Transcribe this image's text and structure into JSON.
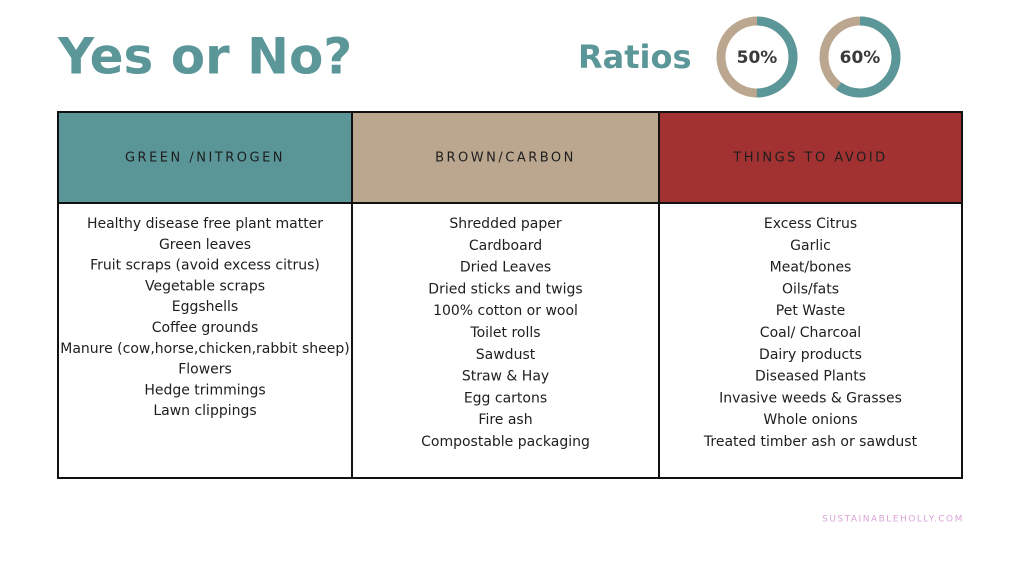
{
  "title": "Yes or No?",
  "ratios": {
    "label": "Ratios",
    "items": [
      {
        "value": 50,
        "label": "50%"
      },
      {
        "value": 60,
        "label": "60%"
      }
    ]
  },
  "table": {
    "columns": [
      {
        "header": "GREEN /NITROGEN",
        "color": "#5a9597",
        "items": [
          "Healthy disease free plant matter",
          "Green leaves",
          "Fruit scraps (avoid excess citrus)",
          "Vegetable scraps",
          "Eggshells",
          "Coffee grounds",
          "Manure (cow,horse,chicken,rabbit sheep)",
          "Flowers",
          "Hedge trimmings",
          "Lawn clippings"
        ]
      },
      {
        "header": "BROWN/CARBON",
        "color": "#bba78f",
        "items": [
          "Shredded paper",
          "Cardboard",
          "Dried Leaves",
          "Dried sticks and twigs",
          "100% cotton or wool",
          "Toilet rolls",
          "Sawdust",
          "Straw & Hay",
          "Egg cartons",
          "Fire ash",
          "Compostable packaging"
        ]
      },
      {
        "header": "THINGS TO AVOID",
        "color": "#a23232",
        "items": [
          "Excess Citrus",
          "Garlic",
          "Meat/bones",
          "Oils/fats",
          "Pet Waste",
          "Coal/ Charcoal",
          "Dairy products",
          "Diseased Plants",
          "Invasive weeds & Grasses",
          "Whole onions",
          "Treated timber ash or sawdust"
        ]
      }
    ]
  },
  "footer": "SUSTAINABLEHOLLY.COM"
}
